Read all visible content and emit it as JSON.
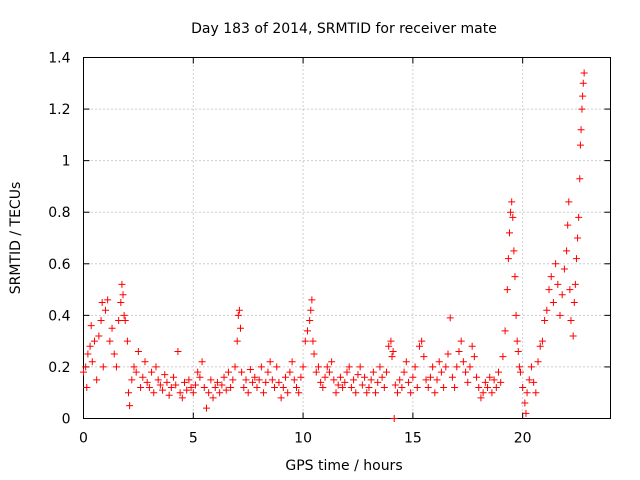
{
  "chart_data": {
    "type": "scatter",
    "title": "Day 183 of 2014, SRMTID for receiver mate",
    "xlabel": "GPS time / hours",
    "ylabel": "SRMTID / TECUs",
    "xlim": [
      0,
      24
    ],
    "ylim": [
      0,
      1.4
    ],
    "x_ticks": [
      0,
      5,
      10,
      15,
      20
    ],
    "x_tick_labels": [
      "0",
      "5",
      "10",
      "15",
      "20"
    ],
    "y_ticks": [
      0,
      0.2,
      0.4,
      0.6,
      0.8,
      1.0,
      1.2,
      1.4
    ],
    "y_tick_labels": [
      "0",
      "0.2",
      "0.4",
      "0.6",
      "0.8",
      "1",
      "1.2",
      "1.4"
    ],
    "grid": true,
    "marker": "+",
    "series": [
      {
        "name": "SRMTID",
        "color": "#ff0000",
        "points": [
          [
            0.0,
            0.18
          ],
          [
            0.1,
            0.2
          ],
          [
            0.15,
            0.12
          ],
          [
            0.2,
            0.25
          ],
          [
            0.3,
            0.28
          ],
          [
            0.35,
            0.36
          ],
          [
            0.4,
            0.22
          ],
          [
            0.5,
            0.3
          ],
          [
            0.6,
            0.15
          ],
          [
            0.7,
            0.32
          ],
          [
            0.8,
            0.38
          ],
          [
            0.85,
            0.45
          ],
          [
            0.9,
            0.2
          ],
          [
            1.0,
            0.42
          ],
          [
            1.1,
            0.46
          ],
          [
            1.2,
            0.3
          ],
          [
            1.3,
            0.35
          ],
          [
            1.4,
            0.25
          ],
          [
            1.5,
            0.2
          ],
          [
            1.6,
            0.38
          ],
          [
            1.7,
            0.45
          ],
          [
            1.75,
            0.52
          ],
          [
            1.8,
            0.48
          ],
          [
            1.85,
            0.4
          ],
          [
            1.9,
            0.38
          ],
          [
            2.0,
            0.3
          ],
          [
            2.05,
            0.1
          ],
          [
            2.1,
            0.05
          ],
          [
            2.2,
            0.15
          ],
          [
            2.3,
            0.2
          ],
          [
            2.4,
            0.18
          ],
          [
            2.5,
            0.26
          ],
          [
            2.6,
            0.12
          ],
          [
            2.7,
            0.16
          ],
          [
            2.8,
            0.22
          ],
          [
            2.9,
            0.14
          ],
          [
            3.0,
            0.12
          ],
          [
            3.1,
            0.18
          ],
          [
            3.2,
            0.1
          ],
          [
            3.3,
            0.2
          ],
          [
            3.4,
            0.15
          ],
          [
            3.5,
            0.13
          ],
          [
            3.6,
            0.11
          ],
          [
            3.7,
            0.17
          ],
          [
            3.8,
            0.14
          ],
          [
            3.9,
            0.09
          ],
          [
            4.0,
            0.12
          ],
          [
            4.1,
            0.16
          ],
          [
            4.2,
            0.13
          ],
          [
            4.3,
            0.26
          ],
          [
            4.4,
            0.1
          ],
          [
            4.5,
            0.08
          ],
          [
            4.6,
            0.14
          ],
          [
            4.7,
            0.11
          ],
          [
            4.8,
            0.15
          ],
          [
            4.9,
            0.12
          ],
          [
            5.0,
            0.1
          ],
          [
            5.1,
            0.13
          ],
          [
            5.2,
            0.18
          ],
          [
            5.3,
            0.16
          ],
          [
            5.4,
            0.22
          ],
          [
            5.5,
            0.12
          ],
          [
            5.6,
            0.04
          ],
          [
            5.7,
            0.1
          ],
          [
            5.8,
            0.15
          ],
          [
            5.9,
            0.08
          ],
          [
            6.0,
            0.12
          ],
          [
            6.1,
            0.14
          ],
          [
            6.2,
            0.1
          ],
          [
            6.3,
            0.13
          ],
          [
            6.4,
            0.16
          ],
          [
            6.5,
            0.11
          ],
          [
            6.6,
            0.18
          ],
          [
            6.7,
            0.12
          ],
          [
            6.8,
            0.15
          ],
          [
            6.9,
            0.2
          ],
          [
            7.0,
            0.3
          ],
          [
            7.05,
            0.4
          ],
          [
            7.1,
            0.42
          ],
          [
            7.15,
            0.35
          ],
          [
            7.2,
            0.18
          ],
          [
            7.3,
            0.12
          ],
          [
            7.4,
            0.15
          ],
          [
            7.5,
            0.1
          ],
          [
            7.6,
            0.19
          ],
          [
            7.7,
            0.14
          ],
          [
            7.8,
            0.16
          ],
          [
            7.9,
            0.12
          ],
          [
            8.0,
            0.15
          ],
          [
            8.1,
            0.2
          ],
          [
            8.2,
            0.1
          ],
          [
            8.3,
            0.14
          ],
          [
            8.4,
            0.18
          ],
          [
            8.5,
            0.22
          ],
          [
            8.6,
            0.15
          ],
          [
            8.7,
            0.12
          ],
          [
            8.8,
            0.2
          ],
          [
            8.9,
            0.14
          ],
          [
            9.0,
            0.08
          ],
          [
            9.1,
            0.12
          ],
          [
            9.2,
            0.16
          ],
          [
            9.3,
            0.1
          ],
          [
            9.4,
            0.18
          ],
          [
            9.5,
            0.22
          ],
          [
            9.6,
            0.15
          ],
          [
            9.7,
            0.12
          ],
          [
            9.8,
            0.1
          ],
          [
            9.9,
            0.16
          ],
          [
            10.0,
            0.2
          ],
          [
            10.1,
            0.3
          ],
          [
            10.2,
            0.34
          ],
          [
            10.3,
            0.38
          ],
          [
            10.35,
            0.42
          ],
          [
            10.4,
            0.46
          ],
          [
            10.45,
            0.3
          ],
          [
            10.5,
            0.25
          ],
          [
            10.6,
            0.18
          ],
          [
            10.7,
            0.2
          ],
          [
            10.8,
            0.14
          ],
          [
            10.9,
            0.12
          ],
          [
            11.0,
            0.16
          ],
          [
            11.1,
            0.2
          ],
          [
            11.2,
            0.18
          ],
          [
            11.3,
            0.22
          ],
          [
            11.4,
            0.15
          ],
          [
            11.5,
            0.1
          ],
          [
            11.6,
            0.13
          ],
          [
            11.7,
            0.16
          ],
          [
            11.8,
            0.12
          ],
          [
            11.9,
            0.14
          ],
          [
            12.0,
            0.18
          ],
          [
            12.1,
            0.2
          ],
          [
            12.2,
            0.12
          ],
          [
            12.3,
            0.15
          ],
          [
            12.4,
            0.1
          ],
          [
            12.5,
            0.17
          ],
          [
            12.6,
            0.2
          ],
          [
            12.7,
            0.13
          ],
          [
            12.8,
            0.16
          ],
          [
            12.9,
            0.1
          ],
          [
            13.0,
            0.12
          ],
          [
            13.1,
            0.15
          ],
          [
            13.2,
            0.18
          ],
          [
            13.3,
            0.1
          ],
          [
            13.4,
            0.14
          ],
          [
            13.5,
            0.2
          ],
          [
            13.6,
            0.16
          ],
          [
            13.7,
            0.12
          ],
          [
            13.8,
            0.18
          ],
          [
            13.9,
            0.28
          ],
          [
            14.0,
            0.3
          ],
          [
            14.05,
            0.24
          ],
          [
            14.1,
            0.26
          ],
          [
            14.15,
            0.0
          ],
          [
            14.2,
            0.13
          ],
          [
            14.3,
            0.1
          ],
          [
            14.4,
            0.15
          ],
          [
            14.5,
            0.12
          ],
          [
            14.6,
            0.18
          ],
          [
            14.7,
            0.22
          ],
          [
            14.8,
            0.14
          ],
          [
            14.9,
            0.1
          ],
          [
            15.0,
            0.16
          ],
          [
            15.1,
            0.2
          ],
          [
            15.2,
            0.12
          ],
          [
            15.3,
            0.28
          ],
          [
            15.4,
            0.3
          ],
          [
            15.5,
            0.24
          ],
          [
            15.6,
            0.15
          ],
          [
            15.7,
            0.12
          ],
          [
            15.8,
            0.16
          ],
          [
            15.9,
            0.2
          ],
          [
            16.0,
            0.1
          ],
          [
            16.1,
            0.15
          ],
          [
            16.2,
            0.22
          ],
          [
            16.3,
            0.18
          ],
          [
            16.4,
            0.12
          ],
          [
            16.5,
            0.2
          ],
          [
            16.6,
            0.25
          ],
          [
            16.7,
            0.39
          ],
          [
            16.8,
            0.16
          ],
          [
            16.9,
            0.12
          ],
          [
            17.0,
            0.2
          ],
          [
            17.1,
            0.26
          ],
          [
            17.2,
            0.3
          ],
          [
            17.3,
            0.22
          ],
          [
            17.4,
            0.18
          ],
          [
            17.5,
            0.14
          ],
          [
            17.6,
            0.2
          ],
          [
            17.7,
            0.28
          ],
          [
            17.8,
            0.24
          ],
          [
            17.9,
            0.16
          ],
          [
            18.0,
            0.12
          ],
          [
            18.1,
            0.08
          ],
          [
            18.2,
            0.1
          ],
          [
            18.3,
            0.14
          ],
          [
            18.4,
            0.12
          ],
          [
            18.5,
            0.16
          ],
          [
            18.6,
            0.1
          ],
          [
            18.7,
            0.15
          ],
          [
            18.8,
            0.12
          ],
          [
            18.9,
            0.18
          ],
          [
            19.0,
            0.14
          ],
          [
            19.1,
            0.24
          ],
          [
            19.2,
            0.34
          ],
          [
            19.3,
            0.5
          ],
          [
            19.35,
            0.62
          ],
          [
            19.4,
            0.72
          ],
          [
            19.45,
            0.8
          ],
          [
            19.5,
            0.84
          ],
          [
            19.55,
            0.78
          ],
          [
            19.6,
            0.65
          ],
          [
            19.65,
            0.55
          ],
          [
            19.7,
            0.4
          ],
          [
            19.75,
            0.3
          ],
          [
            19.8,
            0.26
          ],
          [
            19.85,
            0.2
          ],
          [
            19.9,
            0.18
          ],
          [
            20.0,
            0.12
          ],
          [
            20.1,
            0.06
          ],
          [
            20.15,
            0.02
          ],
          [
            20.2,
            0.1
          ],
          [
            20.3,
            0.15
          ],
          [
            20.4,
            0.2
          ],
          [
            20.5,
            0.14
          ],
          [
            20.6,
            0.1
          ],
          [
            20.7,
            0.22
          ],
          [
            20.8,
            0.28
          ],
          [
            20.9,
            0.3
          ],
          [
            21.0,
            0.38
          ],
          [
            21.1,
            0.42
          ],
          [
            21.2,
            0.5
          ],
          [
            21.3,
            0.55
          ],
          [
            21.4,
            0.45
          ],
          [
            21.5,
            0.6
          ],
          [
            21.6,
            0.52
          ],
          [
            21.7,
            0.4
          ],
          [
            21.8,
            0.48
          ],
          [
            21.9,
            0.58
          ],
          [
            22.0,
            0.65
          ],
          [
            22.05,
            0.75
          ],
          [
            22.1,
            0.84
          ],
          [
            22.15,
            0.5
          ],
          [
            22.2,
            0.38
          ],
          [
            22.3,
            0.32
          ],
          [
            22.35,
            0.45
          ],
          [
            22.4,
            0.52
          ],
          [
            22.45,
            0.62
          ],
          [
            22.5,
            0.7
          ],
          [
            22.55,
            0.78
          ],
          [
            22.6,
            0.93
          ],
          [
            22.63,
            1.06
          ],
          [
            22.66,
            1.12
          ],
          [
            22.7,
            1.2
          ],
          [
            22.73,
            1.25
          ],
          [
            22.76,
            1.3
          ],
          [
            22.8,
            1.34
          ]
        ]
      }
    ]
  }
}
